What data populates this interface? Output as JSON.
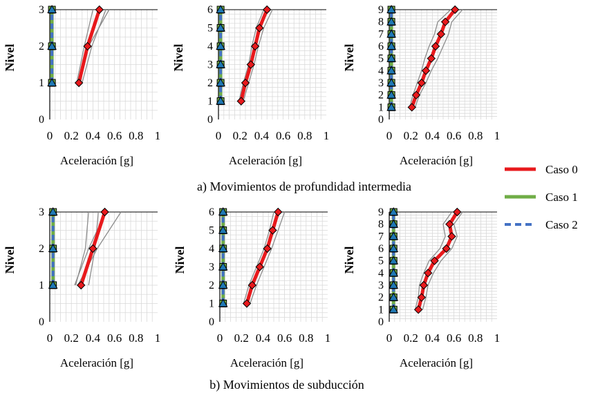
{
  "legend": [
    {
      "name": "Caso 0",
      "color": "#e8191c",
      "style": "solid"
    },
    {
      "name": "Caso 1",
      "color": "#70ad47",
      "style": "solid"
    },
    {
      "name": "Caso 2",
      "color": "#4472c4",
      "style": "dashed"
    }
  ],
  "captions": {
    "a": "a) Movimientos de profundidad intermedia",
    "b": "b) Movimientos de subducción"
  },
  "colors": {
    "grid": "#d9d9d9",
    "gray_records": "#8c8c8c",
    "blue_marker": "#1f78b4",
    "diamond": "#e8191c"
  },
  "chart_data": [
    {
      "type": "line",
      "group": "a",
      "xlabel": "Aceleración [g]",
      "ylabel": "Nivel",
      "xlim": [
        0,
        1
      ],
      "ylim": [
        0,
        3
      ],
      "xticks": [
        "0",
        "0.2",
        "0.4",
        "0.6",
        "0.8",
        "1"
      ],
      "yticks": [
        "0",
        "1",
        "2",
        "3"
      ],
      "levels": [
        1,
        2,
        3
      ],
      "series": [
        {
          "name": "Caso 0",
          "values": [
            0.27,
            0.35,
            0.46
          ]
        },
        {
          "name": "Caso 1",
          "values": [
            0.02,
            0.02,
            0.02
          ]
        },
        {
          "name": "Caso 2",
          "values": [
            0.02,
            0.02,
            0.02
          ]
        }
      ],
      "gray": [
        [
          0.25,
          0.32,
          0.4
        ],
        [
          0.3,
          0.39,
          0.52
        ],
        [
          0.26,
          0.36,
          0.55
        ]
      ]
    },
    {
      "type": "line",
      "group": "a",
      "xlabel": "Aceleración [g]",
      "ylabel": "Nivel",
      "xlim": [
        0,
        1
      ],
      "ylim": [
        0,
        6
      ],
      "xticks": [
        "0",
        "0.2",
        "0.4",
        "0.6",
        "0.8",
        "1"
      ],
      "yticks": [
        "0",
        "1",
        "2",
        "3",
        "4",
        "5",
        "6"
      ],
      "levels": [
        1,
        2,
        3,
        4,
        5,
        6
      ],
      "series": [
        {
          "name": "Caso 0",
          "values": [
            0.21,
            0.25,
            0.3,
            0.34,
            0.38,
            0.45
          ]
        },
        {
          "name": "Caso 1",
          "values": [
            0.02,
            0.02,
            0.02,
            0.02,
            0.02,
            0.02
          ]
        },
        {
          "name": "Caso 2",
          "values": [
            0.02,
            0.02,
            0.02,
            0.02,
            0.02,
            0.02
          ]
        }
      ],
      "gray": [
        [
          0.19,
          0.23,
          0.28,
          0.31,
          0.35,
          0.42
        ],
        [
          0.23,
          0.28,
          0.33,
          0.37,
          0.42,
          0.5
        ]
      ]
    },
    {
      "type": "line",
      "group": "a",
      "xlabel": "Aceleración [g]",
      "ylabel": "Nivel",
      "xlim": [
        0,
        1
      ],
      "ylim": [
        0,
        9
      ],
      "xticks": [
        "0",
        "0.2",
        "0.4",
        "0.6",
        "0.8",
        "1"
      ],
      "yticks": [
        "0",
        "1",
        "2",
        "3",
        "4",
        "5",
        "6",
        "7",
        "8",
        "9"
      ],
      "levels": [
        1,
        2,
        3,
        4,
        5,
        6,
        7,
        8,
        9
      ],
      "series": [
        {
          "name": "Caso 0",
          "values": [
            0.21,
            0.25,
            0.3,
            0.34,
            0.39,
            0.43,
            0.48,
            0.52,
            0.61
          ]
        },
        {
          "name": "Caso 1",
          "values": [
            0.02,
            0.02,
            0.02,
            0.02,
            0.02,
            0.02,
            0.02,
            0.02,
            0.02
          ]
        },
        {
          "name": "Caso 2",
          "values": [
            0.02,
            0.02,
            0.02,
            0.02,
            0.02,
            0.02,
            0.02,
            0.02,
            0.02
          ]
        }
      ],
      "gray": [
        [
          0.19,
          0.22,
          0.26,
          0.3,
          0.33,
          0.37,
          0.42,
          0.45,
          0.57
        ],
        [
          0.24,
          0.28,
          0.34,
          0.39,
          0.45,
          0.5,
          0.55,
          0.58,
          0.68
        ]
      ]
    },
    {
      "type": "line",
      "group": "b",
      "xlabel": "Aceleración [g]",
      "ylabel": "Nivel",
      "xlim": [
        0,
        1
      ],
      "ylim": [
        0,
        3
      ],
      "xticks": [
        "0",
        "0.2",
        "0.4",
        "0.6",
        "0.8",
        "1"
      ],
      "yticks": [
        "0",
        "1",
        "2",
        "3"
      ],
      "levels": [
        1,
        2,
        3
      ],
      "series": [
        {
          "name": "Caso 0",
          "values": [
            0.29,
            0.4,
            0.51
          ]
        },
        {
          "name": "Caso 1",
          "values": [
            0.03,
            0.03,
            0.03
          ]
        },
        {
          "name": "Caso 2",
          "values": [
            0.03,
            0.03,
            0.03
          ]
        }
      ],
      "gray": [
        [
          0.24,
          0.33,
          0.36
        ],
        [
          0.23,
          0.36,
          0.52
        ],
        [
          0.26,
          0.44,
          0.66
        ],
        [
          0.36,
          0.42,
          0.45
        ]
      ]
    },
    {
      "type": "line",
      "group": "b",
      "xlabel": "Aceleración [g]",
      "ylabel": "Nivel",
      "xlim": [
        0,
        1
      ],
      "ylim": [
        0,
        6
      ],
      "xticks": [
        "0",
        "0.2",
        "0.4",
        "0.6",
        "0.8",
        "1"
      ],
      "yticks": [
        "0",
        "1",
        "2",
        "3",
        "4",
        "5",
        "6"
      ],
      "levels": [
        1,
        2,
        3,
        4,
        5,
        6
      ],
      "series": [
        {
          "name": "Caso 0",
          "values": [
            0.25,
            0.3,
            0.37,
            0.44,
            0.49,
            0.54
          ]
        },
        {
          "name": "Caso 1",
          "values": [
            0.03,
            0.03,
            0.03,
            0.03,
            0.03,
            0.03
          ]
        },
        {
          "name": "Caso 2",
          "values": [
            0.03,
            0.03,
            0.03,
            0.03,
            0.03,
            0.03
          ]
        }
      ],
      "gray": [
        [
          0.22,
          0.27,
          0.34,
          0.41,
          0.46,
          0.5
        ],
        [
          0.28,
          0.34,
          0.41,
          0.48,
          0.54,
          0.6
        ]
      ]
    },
    {
      "type": "line",
      "group": "b",
      "xlabel": "Aceleración [g]",
      "ylabel": "Nivel",
      "xlim": [
        0,
        1
      ],
      "ylim": [
        0,
        9
      ],
      "xticks": [
        "0",
        "0.2",
        "0.4",
        "0.6",
        "0.8",
        "1"
      ],
      "yticks": [
        "0",
        "1",
        "2",
        "3",
        "4",
        "5",
        "6",
        "7",
        "8",
        "9"
      ],
      "levels": [
        1,
        2,
        3,
        4,
        5,
        6,
        7,
        8,
        9
      ],
      "series": [
        {
          "name": "Caso 0",
          "values": [
            0.27,
            0.3,
            0.32,
            0.36,
            0.42,
            0.53,
            0.58,
            0.56,
            0.63
          ]
        },
        {
          "name": "Caso 1",
          "values": [
            0.04,
            0.04,
            0.04,
            0.04,
            0.04,
            0.04,
            0.04,
            0.04,
            0.04
          ]
        },
        {
          "name": "Caso 2",
          "values": [
            0.04,
            0.04,
            0.04,
            0.04,
            0.04,
            0.04,
            0.04,
            0.04,
            0.04
          ]
        }
      ],
      "gray": [
        [
          0.24,
          0.27,
          0.28,
          0.32,
          0.37,
          0.47,
          0.52,
          0.5,
          0.58
        ],
        [
          0.31,
          0.34,
          0.36,
          0.41,
          0.48,
          0.58,
          0.63,
          0.6,
          0.68
        ]
      ]
    }
  ]
}
